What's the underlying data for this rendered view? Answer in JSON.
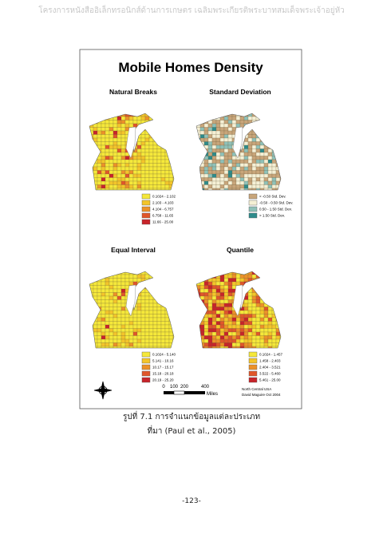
{
  "header": "โครงการหนังสืออิเล็กทรอนิกส์ด้านการเกษตร เฉลิมพระเกียรติพระบาทสมเด็จพระเจ้าอยู่หัว",
  "figure": {
    "title": "Mobile Homes Density",
    "panels": [
      {
        "title": "Natural Breaks",
        "legend": [
          "0.1024 - 2.102",
          "2.103 - 4.103",
          "4.104 - 6.757",
          "6.758 - 11.65",
          "11.66 - 25.00"
        ]
      },
      {
        "title": "Standard Deviation",
        "legend": [
          "< -0.50 Std. Dev.",
          "-0.50 - 0.50 Std. Dev.",
          "0.50 - 1.50 Std. Dev.",
          "> 1.50 Std. Dev."
        ]
      },
      {
        "title": "Equal Interval",
        "legend": [
          "0.1024 - 5.140",
          "5.141 - 10.16",
          "10.17 - 15.17",
          "15.18 - 20.18",
          "20.19 - 25.20"
        ]
      },
      {
        "title": "Quantile",
        "legend": [
          "0.1024 - 1.457",
          "1.458 - 2.403",
          "2.404 - 3.521",
          "3.522 - 5.460",
          "5.461 - 25.00"
        ]
      }
    ],
    "scale_labels": [
      "0",
      "100",
      "200",
      "400",
      "Miles"
    ],
    "credit": [
      "North Central USA",
      "David Maguire Oct 2004"
    ]
  },
  "caption": "รูปที่ 7.1 การจำแนกข้อมูลแต่ละประเภท",
  "source": "ที่มา (Paul et al., 2005)",
  "page_number": "-123-"
}
